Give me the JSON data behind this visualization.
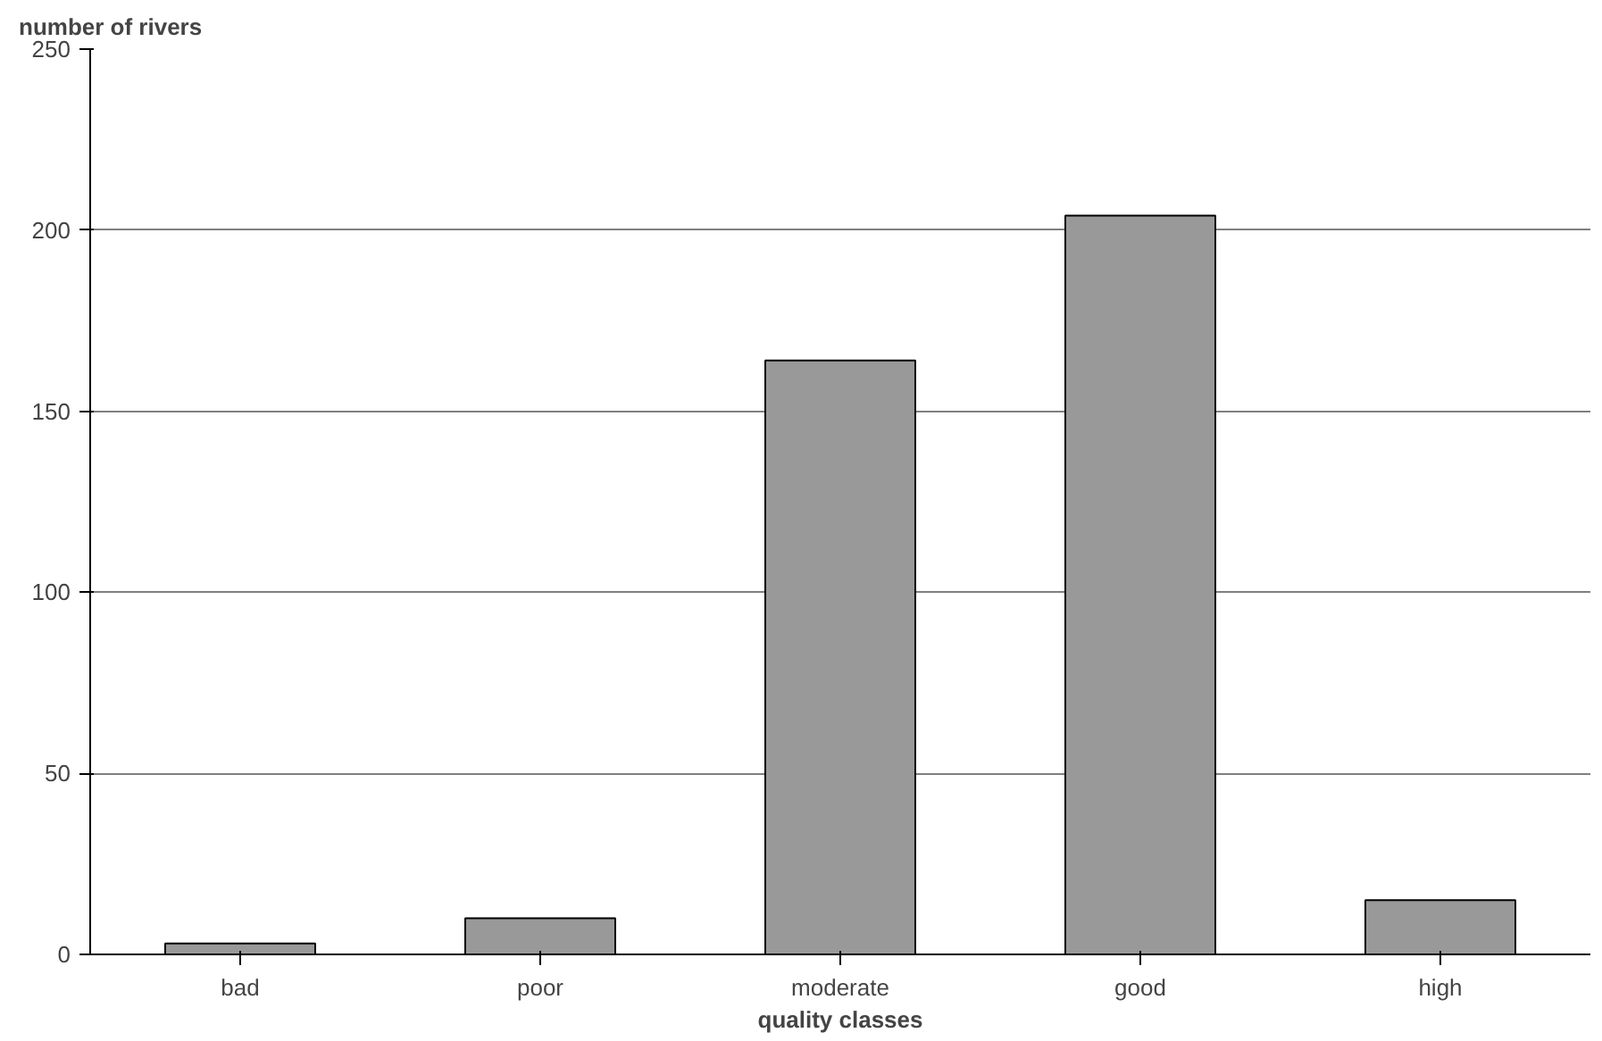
{
  "chart_data": {
    "type": "bar",
    "ylabel": "number of rivers",
    "xlabel": "quality classes",
    "categories": [
      "bad",
      "poor",
      "moderate",
      "good",
      "high"
    ],
    "values": [
      3,
      10,
      164,
      204,
      15
    ],
    "color": "#999999",
    "ylim": [
      0,
      250
    ],
    "yticks": [
      0,
      50,
      100,
      150,
      200,
      250
    ],
    "grid": "y"
  }
}
